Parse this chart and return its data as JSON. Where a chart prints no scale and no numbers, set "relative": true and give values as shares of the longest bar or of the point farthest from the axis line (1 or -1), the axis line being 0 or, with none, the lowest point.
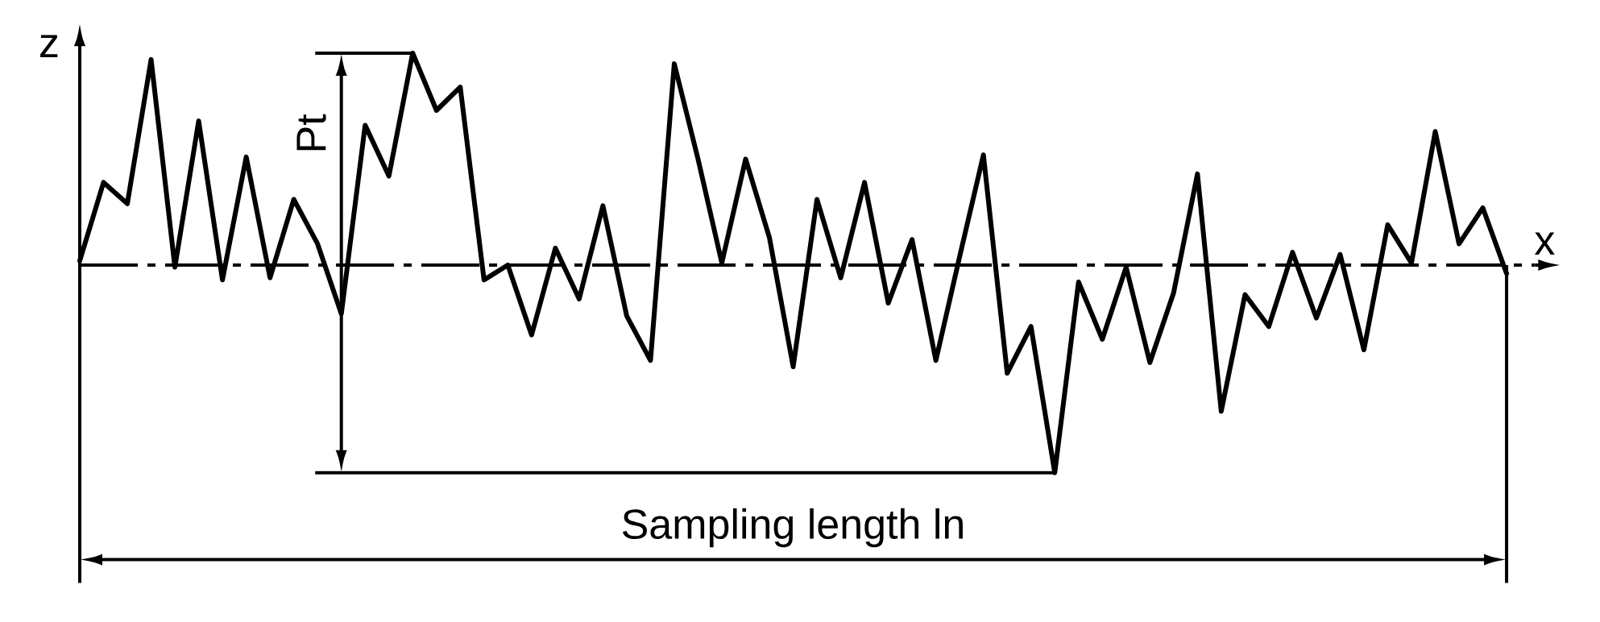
{
  "chart_data": {
    "type": "line",
    "relative": true,
    "xlabel": "x",
    "ylabel": "z",
    "color": "#000000",
    "line_style": "solid",
    "categories": [
      null,
      null,
      null,
      null,
      null,
      null,
      null,
      null,
      null,
      null,
      null,
      null,
      null,
      null,
      null,
      null,
      null,
      null,
      null,
      null,
      null,
      null,
      null,
      null,
      null,
      null,
      null,
      null,
      null,
      null,
      null,
      null,
      null,
      null,
      null,
      null,
      null,
      null,
      null,
      null,
      null,
      null,
      null,
      null,
      null,
      null,
      null,
      null,
      null,
      null,
      null,
      null,
      null,
      null,
      null,
      null,
      null,
      null,
      null,
      null,
      null
    ],
    "values": [
      0.02,
      0.39,
      0.29,
      0.97,
      -0.01,
      0.68,
      -0.07,
      0.51,
      -0.06,
      0.31,
      0.1,
      -0.23,
      0.66,
      0.42,
      1.0,
      0.73,
      0.84,
      -0.07,
      0.0,
      -0.33,
      0.08,
      -0.16,
      0.28,
      -0.24,
      -0.45,
      0.95,
      0.5,
      0.01,
      0.5,
      0.13,
      -0.48,
      0.31,
      -0.06,
      0.39,
      -0.18,
      0.12,
      -0.45,
      0.04,
      0.52,
      -0.51,
      -0.29,
      -0.98,
      -0.08,
      -0.35,
      -0.01,
      -0.46,
      -0.13,
      0.43,
      -0.69,
      -0.14,
      -0.29,
      0.06,
      -0.25,
      0.05,
      -0.4,
      0.19,
      0.01,
      0.63,
      0.1,
      0.27,
      -0.04
    ],
    "ref_lines": [
      {
        "axis": "y",
        "value": 0,
        "line_style": "dashed"
      },
      {
        "axis": "y",
        "value": -0.98
      }
    ],
    "annotations": [
      "Pt",
      "Sampling length ln"
    ]
  }
}
